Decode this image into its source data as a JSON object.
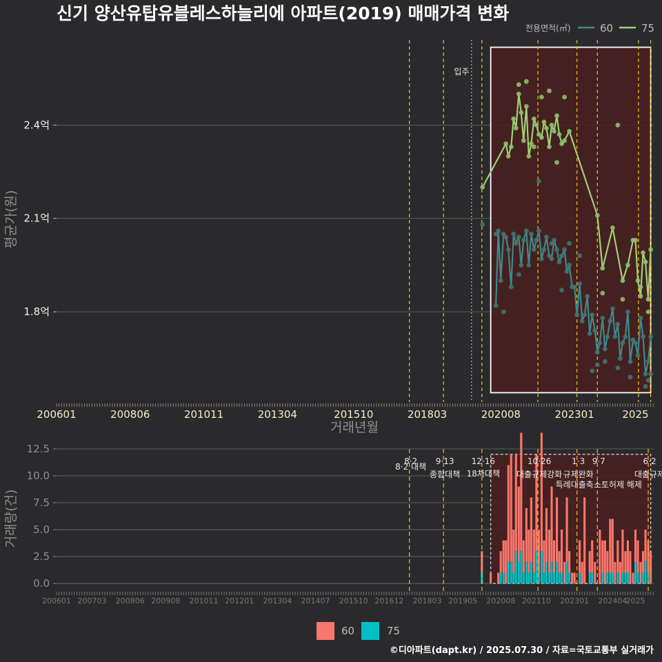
{
  "colors": {
    "background": "#2a2a2c",
    "grid": "#6a6a6a",
    "series_60": "#3d8a8c",
    "series_60_point": "#3f7370",
    "series_75": "#9ed078",
    "series_75_point": "#8cbf68",
    "bar_60": "#f8766d",
    "bar_75": "#00bfc4",
    "policy_line": "#f0c419",
    "policy_line_bottom": "#f5a623",
    "highlight_fill": "#4a1e1e",
    "highlight_border": "#ffffff"
  },
  "chart_data": [
    {
      "id": "price",
      "type": "line",
      "title": "신기 양산유탑유블레스하늘리에 아파트(2019) 매매가격 변화",
      "xlabel": "거래년월",
      "ylabel": "평균가(원)",
      "x_ticks": [
        "200601",
        "200806",
        "201011",
        "201304",
        "201510",
        "201803",
        "202008",
        "202301",
        "2025"
      ],
      "x_range": [
        2006.0,
        2025.6
      ],
      "y_ticks": [
        {
          "value": 1.8,
          "label": "1.8억"
        },
        {
          "value": 2.1,
          "label": "2.1억"
        },
        {
          "value": 2.4,
          "label": "2.4억"
        }
      ],
      "ylim": [
        1.51,
        2.68
      ],
      "legend_title": "전용면적(㎡)",
      "legend": [
        "60",
        "75"
      ],
      "annotations": [
        {
          "x": 2019.25,
          "label": "입주"
        }
      ],
      "policy_lines": [
        2017.58,
        2018.7,
        2019.96,
        2021.8,
        2023.08,
        2023.75,
        2025.1,
        2025.5
      ],
      "movein_line": 2019.62,
      "highlight": {
        "x": [
          2020.25,
          2025.5
        ],
        "y": [
          1.54,
          2.65
        ]
      },
      "series": [
        {
          "name": "75",
          "x": [
            2019.98,
            2020.75,
            2020.83,
            2020.92,
            2021.0,
            2021.08,
            2021.17,
            2021.25,
            2021.33,
            2021.42,
            2021.5,
            2021.58,
            2021.67,
            2021.75,
            2021.83,
            2021.92,
            2022.0,
            2022.08,
            2022.17,
            2022.25,
            2022.33,
            2022.42,
            2022.5,
            2022.58,
            2022.67,
            2022.83,
            2023.75,
            2023.92,
            2024.25,
            2024.58,
            2024.75,
            2024.92,
            2025.0,
            2025.08,
            2025.17,
            2025.25,
            2025.33,
            2025.42,
            2025.5
          ],
          "y": [
            2.2,
            2.34,
            2.3,
            2.33,
            2.42,
            2.39,
            2.5,
            2.44,
            2.35,
            2.46,
            2.3,
            2.34,
            2.42,
            2.4,
            2.37,
            2.36,
            2.41,
            2.39,
            2.33,
            2.4,
            2.38,
            2.43,
            2.37,
            2.34,
            2.35,
            2.38,
            2.11,
            1.94,
            2.07,
            1.9,
            1.95,
            2.03,
            2.03,
            1.9,
            1.85,
            1.99,
            1.96,
            1.84,
            2.0
          ]
        },
        {
          "name": "60",
          "x": [
            2020.42,
            2020.5,
            2020.58,
            2020.67,
            2020.75,
            2020.83,
            2020.92,
            2021.0,
            2021.08,
            2021.17,
            2021.25,
            2021.33,
            2021.42,
            2021.5,
            2021.58,
            2021.67,
            2021.75,
            2021.83,
            2021.92,
            2022.0,
            2022.08,
            2022.17,
            2022.25,
            2022.33,
            2022.42,
            2022.5,
            2022.58,
            2022.67,
            2022.75,
            2022.83,
            2022.92,
            2023.0,
            2023.08,
            2023.17,
            2023.25,
            2023.33,
            2023.42,
            2023.5,
            2023.58,
            2023.67,
            2023.75,
            2023.83,
            2023.92,
            2024.0,
            2024.08,
            2024.17,
            2024.25,
            2024.33,
            2024.42,
            2024.5,
            2024.58,
            2024.67,
            2024.75,
            2024.83,
            2024.92,
            2025.0,
            2025.08,
            2025.17,
            2025.25,
            2025.33,
            2025.42,
            2025.5
          ],
          "y": [
            1.82,
            2.06,
            1.9,
            2.05,
            2.04,
            2.0,
            1.88,
            2.05,
            2.02,
            2.04,
            1.95,
            2.03,
            2.06,
            1.95,
            2.05,
            2.0,
            2.03,
            2.06,
            1.97,
            2.0,
            2.04,
            1.98,
            1.97,
            2.03,
            2.0,
            1.96,
            1.98,
            2.0,
            1.93,
            1.95,
            1.88,
            1.88,
            1.79,
            1.89,
            1.77,
            1.79,
            1.85,
            1.73,
            1.79,
            1.74,
            1.67,
            1.7,
            1.78,
            1.68,
            1.72,
            1.77,
            1.81,
            1.72,
            1.76,
            1.65,
            1.7,
            1.72,
            1.8,
            1.64,
            1.71,
            1.7,
            1.66,
            1.78,
            1.72,
            1.6,
            1.64,
            1.72
          ]
        }
      ],
      "points_60": [
        [
          2019.98,
          2.08
        ],
        [
          2020.42,
          2.05
        ],
        [
          2020.67,
          1.8
        ],
        [
          2021.17,
          1.92
        ],
        [
          2021.83,
          2.22
        ],
        [
          2022.25,
          2.02
        ],
        [
          2022.58,
          1.87
        ],
        [
          2022.83,
          2.02
        ],
        [
          2023.17,
          1.98
        ],
        [
          2023.58,
          1.61
        ],
        [
          2023.75,
          1.63
        ],
        [
          2024.0,
          1.64
        ],
        [
          2024.42,
          1.62
        ],
        [
          2024.83,
          1.59
        ],
        [
          2025.33,
          1.56
        ],
        [
          2025.42,
          1.58
        ],
        [
          2025.5,
          1.6
        ]
      ],
      "points_75": [
        [
          2021.17,
          2.53
        ],
        [
          2021.42,
          2.54
        ],
        [
          2021.67,
          2.33
        ],
        [
          2021.92,
          2.49
        ],
        [
          2022.17,
          2.51
        ],
        [
          2022.42,
          2.28
        ],
        [
          2022.67,
          2.49
        ],
        [
          2024.42,
          2.4
        ],
        [
          2023.92,
          1.86
        ],
        [
          2024.58,
          1.84
        ],
        [
          2025.17,
          1.88
        ],
        [
          2025.42,
          1.8
        ]
      ]
    },
    {
      "id": "volume",
      "type": "bar",
      "stacked": true,
      "ylabel": "거래량(건)",
      "x_ticks": [
        "200601",
        "200703",
        "200806",
        "200908",
        "201011",
        "201201",
        "201304",
        "201407",
        "201510",
        "201612",
        "201803",
        "201905",
        "202008",
        "202110",
        "202301",
        "202404",
        "2025"
      ],
      "x_range": [
        2006.0,
        2025.6
      ],
      "y_ticks": [
        {
          "value": 0,
          "label": "0.0"
        },
        {
          "value": 2.5,
          "label": "2.5"
        },
        {
          "value": 5,
          "label": "5.0"
        },
        {
          "value": 7.5,
          "label": "7.5"
        },
        {
          "value": 10,
          "label": "10.0"
        },
        {
          "value": 12.5,
          "label": "12.5"
        }
      ],
      "ylim": [
        -0.7,
        12.5
      ],
      "legend": [
        "60",
        "75"
      ],
      "policies": [
        {
          "x": 2017.58,
          "date": "8·2",
          "label": "8·2 대책"
        },
        {
          "x": 2018.7,
          "date": "9·13",
          "label": "종합대책"
        },
        {
          "x": 2019.96,
          "date": "12·16",
          "label": "18차대책"
        },
        {
          "x": 2021.8,
          "date": "10·26",
          "label": "대출규제강화"
        },
        {
          "x": 2023.08,
          "date": "1·3",
          "label": "규제완화"
        },
        {
          "x": 2023.75,
          "date": "9·7",
          "label": "특례대출축소토허제 해제"
        },
        {
          "x": 2025.42,
          "date": "6·2",
          "label": "대출규제"
        }
      ],
      "highlight": {
        "x": [
          2020.25,
          2025.5
        ],
        "y": [
          0,
          12
        ]
      },
      "bars": [
        {
          "x": 2019.96,
          "v60": 2,
          "v75": 1
        },
        {
          "x": 2020.25,
          "v60": 1,
          "v75": 0
        },
        {
          "x": 2020.5,
          "v60": 1,
          "v75": 0
        },
        {
          "x": 2020.58,
          "v60": 2,
          "v75": 1
        },
        {
          "x": 2020.67,
          "v60": 3,
          "v75": 1
        },
        {
          "x": 2020.75,
          "v60": 4,
          "v75": 0
        },
        {
          "x": 2020.83,
          "v60": 9,
          "v75": 2
        },
        {
          "x": 2020.92,
          "v60": 10,
          "v75": 2
        },
        {
          "x": 2021.0,
          "v60": 4,
          "v75": 1
        },
        {
          "x": 2021.08,
          "v60": 9,
          "v75": 3
        },
        {
          "x": 2021.17,
          "v60": 7,
          "v75": 2
        },
        {
          "x": 2021.25,
          "v60": 11,
          "v75": 3
        },
        {
          "x": 2021.33,
          "v60": 3,
          "v75": 1
        },
        {
          "x": 2021.42,
          "v60": 5,
          "v75": 2
        },
        {
          "x": 2021.5,
          "v60": 4,
          "v75": 1
        },
        {
          "x": 2021.58,
          "v60": 6,
          "v75": 2
        },
        {
          "x": 2021.67,
          "v60": 4,
          "v75": 1
        },
        {
          "x": 2021.75,
          "v60": 9,
          "v75": 3
        },
        {
          "x": 2021.83,
          "v60": 4,
          "v75": 1
        },
        {
          "x": 2021.92,
          "v60": 11,
          "v75": 3
        },
        {
          "x": 2022.0,
          "v60": 3,
          "v75": 1
        },
        {
          "x": 2022.08,
          "v60": 5,
          "v75": 2
        },
        {
          "x": 2022.17,
          "v60": 4,
          "v75": 1
        },
        {
          "x": 2022.25,
          "v60": 7,
          "v75": 2
        },
        {
          "x": 2022.33,
          "v60": 3,
          "v75": 1
        },
        {
          "x": 2022.42,
          "v60": 6,
          "v75": 2
        },
        {
          "x": 2022.5,
          "v60": 2,
          "v75": 1
        },
        {
          "x": 2022.58,
          "v60": 4,
          "v75": 1
        },
        {
          "x": 2022.67,
          "v60": 2,
          "v75": 0
        },
        {
          "x": 2022.75,
          "v60": 6,
          "v75": 2
        },
        {
          "x": 2022.83,
          "v60": 2,
          "v75": 1
        },
        {
          "x": 2022.92,
          "v60": 1,
          "v75": 0
        },
        {
          "x": 2023.0,
          "v60": 1,
          "v75": 0
        },
        {
          "x": 2023.17,
          "v60": 3,
          "v75": 1
        },
        {
          "x": 2023.25,
          "v60": 2,
          "v75": 0
        },
        {
          "x": 2023.33,
          "v60": 8,
          "v75": 0
        },
        {
          "x": 2023.5,
          "v60": 2,
          "v75": 1
        },
        {
          "x": 2023.58,
          "v60": 3,
          "v75": 1
        },
        {
          "x": 2023.67,
          "v60": 2,
          "v75": 0
        },
        {
          "x": 2023.83,
          "v60": 5,
          "v75": 0
        },
        {
          "x": 2023.92,
          "v60": 3,
          "v75": 1
        },
        {
          "x": 2024.0,
          "v60": 4,
          "v75": 0
        },
        {
          "x": 2024.08,
          "v60": 2,
          "v75": 1
        },
        {
          "x": 2024.17,
          "v60": 5,
          "v75": 1
        },
        {
          "x": 2024.25,
          "v60": 5,
          "v75": 1
        },
        {
          "x": 2024.33,
          "v60": 2,
          "v75": 0
        },
        {
          "x": 2024.42,
          "v60": 3,
          "v75": 1
        },
        {
          "x": 2024.5,
          "v60": 2,
          "v75": 0
        },
        {
          "x": 2024.58,
          "v60": 4,
          "v75": 1
        },
        {
          "x": 2024.67,
          "v60": 2,
          "v75": 1
        },
        {
          "x": 2024.75,
          "v60": 3,
          "v75": 1
        },
        {
          "x": 2024.83,
          "v60": 3,
          "v75": 0
        },
        {
          "x": 2024.92,
          "v60": 1,
          "v75": 0
        },
        {
          "x": 2025.0,
          "v60": 3,
          "v75": 2
        },
        {
          "x": 2025.08,
          "v60": 3,
          "v75": 1
        },
        {
          "x": 2025.17,
          "v60": 2,
          "v75": 0
        },
        {
          "x": 2025.25,
          "v60": 2,
          "v75": 1
        },
        {
          "x": 2025.33,
          "v60": 3,
          "v75": 2
        },
        {
          "x": 2025.42,
          "v60": 3,
          "v75": 1
        },
        {
          "x": 2025.5,
          "v60": 3,
          "v75": 0
        }
      ]
    }
  ],
  "caption": "©디아파트(dapt.kr) / 2025.07.30 / 자료=국토교통부 실거래가"
}
